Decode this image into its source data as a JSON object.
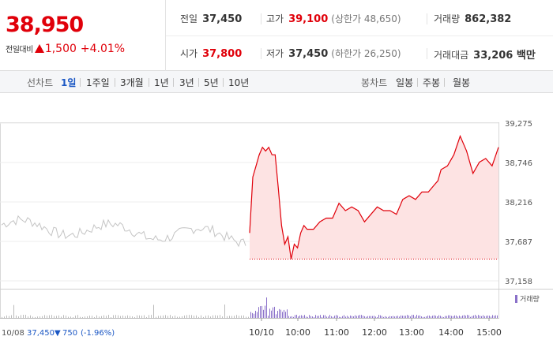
{
  "summary": {
    "price": "38,950",
    "change_label": "전일대비",
    "change_value": "1,500",
    "change_pct": "+4.01%",
    "prev_close": {
      "label": "전일",
      "value": "37,450"
    },
    "high": {
      "label": "고가",
      "value": "39,100",
      "limit_label": "(상한가 48,650)"
    },
    "volume": {
      "label": "거래량",
      "value": "862,382"
    },
    "open": {
      "label": "시가",
      "value": "37,800"
    },
    "low": {
      "label": "저가",
      "value": "37,450",
      "limit_label": "(하한가 26,250)"
    },
    "amount": {
      "label": "거래대금",
      "value": "33,206 백만"
    }
  },
  "line_period": {
    "label": "선차트",
    "options": [
      "1일",
      "1주일",
      "3개월",
      "1년",
      "3년",
      "5년",
      "10년"
    ],
    "selected": "1일"
  },
  "candle_period": {
    "label": "봉차트",
    "options": [
      "일봉",
      "주봉",
      "월봉"
    ]
  },
  "colors": {
    "up": "#e0000a",
    "down": "#1b57c4",
    "prev_day_line": "#c4c4c4",
    "area_fill": "#fde3e3",
    "volume_bar": "#8a70c9"
  },
  "chart_data": {
    "type": "line",
    "y_ticks": [
      "39,275",
      "38,746",
      "38,216",
      "37,687",
      "37,158"
    ],
    "ylim": [
      37158,
      39275
    ],
    "baseline": 37450,
    "x_ticks": [
      "10/10",
      "10:00",
      "11:00",
      "12:00",
      "13:00",
      "14:00",
      "15:00"
    ],
    "prev_day": {
      "date": "10/08",
      "close": "37,450",
      "change": "750",
      "change_pct": "(-1.96%)"
    },
    "series": [
      {
        "x": [
          "09:00",
          "09:05",
          "09:10",
          "09:15",
          "09:20",
          "09:25",
          "09:30",
          "09:35",
          "09:40",
          "09:45",
          "09:50",
          "09:55",
          "10:00",
          "10:05",
          "10:10",
          "10:15",
          "10:20",
          "10:25",
          "10:30",
          "10:40",
          "10:50",
          "11:00",
          "11:10",
          "11:20",
          "11:30",
          "11:40",
          "11:50",
          "12:00",
          "12:10",
          "12:20",
          "12:30",
          "12:40",
          "12:50",
          "13:00",
          "13:10",
          "13:20",
          "13:30",
          "13:40",
          "13:50",
          "13:55",
          "14:00",
          "14:10",
          "14:20",
          "14:30",
          "14:40",
          "14:50",
          "15:00",
          "15:10",
          "15:20",
          "15:30"
        ],
        "values": [
          37800,
          38550,
          38700,
          38850,
          38950,
          38900,
          38950,
          38850,
          38850,
          38400,
          37900,
          37650,
          37750,
          37450,
          37650,
          37600,
          37800,
          37900,
          37850,
          37850,
          37950,
          38000,
          38000,
          38200,
          38100,
          38150,
          38100,
          37950,
          38050,
          38150,
          38100,
          38100,
          38050,
          38250,
          38300,
          38250,
          38350,
          38350,
          38450,
          38500,
          38650,
          38700,
          38850,
          39100,
          38900,
          38600,
          38750,
          38800,
          38700,
          38950
        ]
      }
    ],
    "volume_legend": "거래량"
  }
}
